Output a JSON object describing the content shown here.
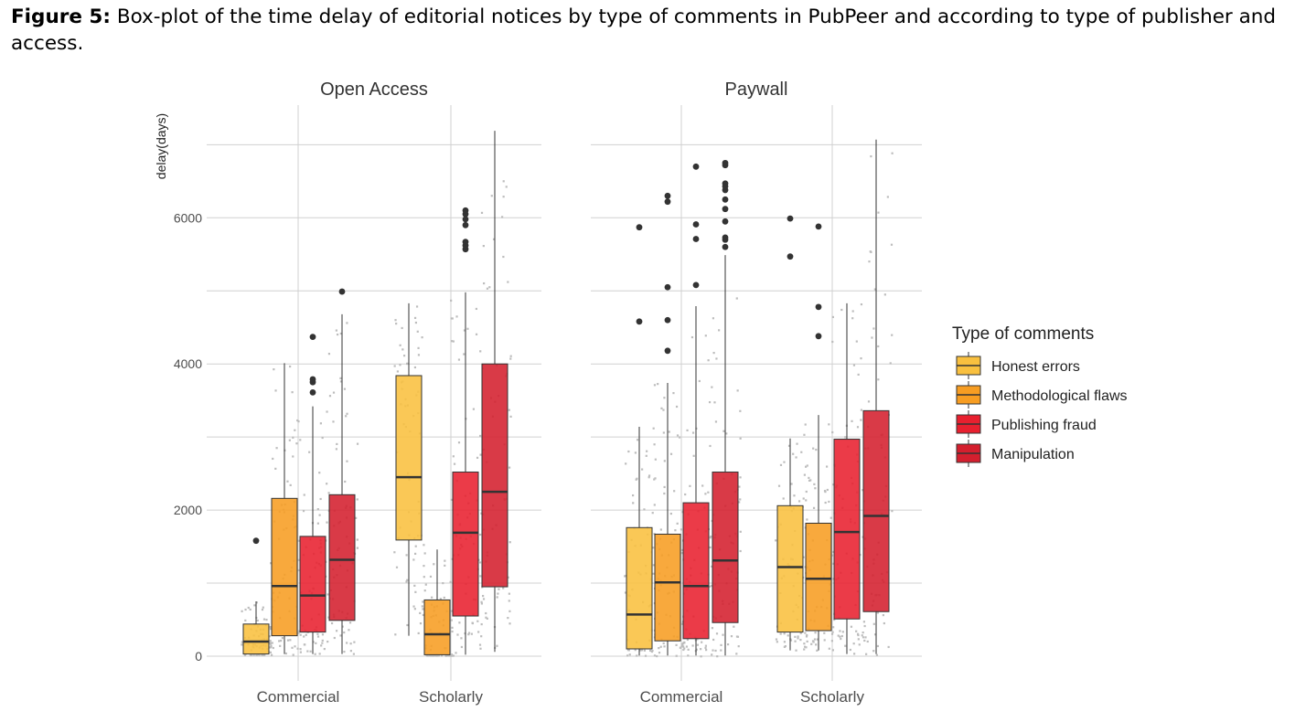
{
  "caption": {
    "label": "Figure 5:",
    "text": " Box-plot of the time delay of editorial notices by type of comments in PubPeer and according to type of publisher and access."
  },
  "chart_data": {
    "type": "boxplot",
    "ylabel": "delay(days)",
    "y_ticks": [
      0,
      2000,
      4000,
      6000
    ],
    "ylim": [
      -50,
      7250
    ],
    "grid": true,
    "legend_position": "right",
    "legend": {
      "title": "Type of comments",
      "entries": [
        {
          "name": "Honest errors",
          "color": "#f9c03f"
        },
        {
          "name": "Methodological flaws",
          "color": "#f79d22"
        },
        {
          "name": "Publishing fraud",
          "color": "#e8202f"
        },
        {
          "name": "Manipulation",
          "color": "#d41f2e"
        }
      ]
    },
    "panels": [
      {
        "title": "Open Access",
        "categories": [
          "Commercial",
          "Scholarly"
        ],
        "groups": [
          {
            "category": "Commercial",
            "boxes": [
              {
                "series": "Honest errors",
                "whisker_low": 30,
                "q1": 30,
                "median": 200,
                "q3": 440,
                "whisker_high": 750,
                "outliers": [
                  1580
                ]
              },
              {
                "series": "Methodological flaws",
                "whisker_low": 30,
                "q1": 280,
                "median": 960,
                "q3": 2160,
                "whisker_high": 4010,
                "outliers": []
              },
              {
                "series": "Publishing fraud",
                "whisker_low": 30,
                "q1": 330,
                "median": 830,
                "q3": 1640,
                "whisker_high": 3420,
                "outliers": [
                  3610,
                  3750,
                  3790,
                  4370
                ]
              },
              {
                "series": "Manipulation",
                "whisker_low": 30,
                "q1": 490,
                "median": 1320,
                "q3": 2210,
                "whisker_high": 4680,
                "outliers": [
                  4990
                ]
              }
            ]
          },
          {
            "category": "Scholarly",
            "boxes": [
              {
                "series": "Honest errors",
                "whisker_low": 280,
                "q1": 1590,
                "median": 2450,
                "q3": 3840,
                "whisker_high": 4830,
                "outliers": []
              },
              {
                "series": "Methodological flaws",
                "whisker_low": 20,
                "q1": 20,
                "median": 300,
                "q3": 770,
                "whisker_high": 1460,
                "outliers": []
              },
              {
                "series": "Publishing fraud",
                "whisker_low": 20,
                "q1": 550,
                "median": 1690,
                "q3": 2520,
                "whisker_high": 4980,
                "outliers": [
                  5570,
                  5620,
                  5670,
                  5900,
                  5980,
                  6050,
                  6100
                ]
              },
              {
                "series": "Manipulation",
                "whisker_low": 60,
                "q1": 950,
                "median": 2250,
                "q3": 4000,
                "whisker_high": 7190,
                "outliers": []
              }
            ]
          }
        ]
      },
      {
        "title": "Paywall",
        "categories": [
          "Commercial",
          "Scholarly"
        ],
        "groups": [
          {
            "category": "Commercial",
            "boxes": [
              {
                "series": "Honest errors",
                "whisker_low": 10,
                "q1": 100,
                "median": 570,
                "q3": 1760,
                "whisker_high": 3140,
                "outliers": [
                  4580,
                  5870
                ]
              },
              {
                "series": "Methodological flaws",
                "whisker_low": 10,
                "q1": 210,
                "median": 1010,
                "q3": 1670,
                "whisker_high": 3740,
                "outliers": [
                  4180,
                  4600,
                  5050,
                  6220,
                  6300
                ]
              },
              {
                "series": "Publishing fraud",
                "whisker_low": 10,
                "q1": 240,
                "median": 960,
                "q3": 2100,
                "whisker_high": 4790,
                "outliers": [
                  5080,
                  5710,
                  5910,
                  6700
                ]
              },
              {
                "series": "Manipulation",
                "whisker_low": 10,
                "q1": 460,
                "median": 1310,
                "q3": 2520,
                "whisker_high": 5490,
                "outliers": [
                  5600,
                  5700,
                  5730,
                  5950,
                  6120,
                  6250,
                  6380,
                  6430,
                  6470,
                  6720,
                  6750
                ]
              }
            ]
          },
          {
            "category": "Scholarly",
            "boxes": [
              {
                "series": "Honest errors",
                "whisker_low": 80,
                "q1": 330,
                "median": 1220,
                "q3": 2060,
                "whisker_high": 2980,
                "outliers": [
                  5470,
                  5990
                ]
              },
              {
                "series": "Methodological flaws",
                "whisker_low": 80,
                "q1": 350,
                "median": 1060,
                "q3": 1820,
                "whisker_high": 3300,
                "outliers": [
                  4380,
                  4780,
                  5880
                ]
              },
              {
                "series": "Publishing fraud",
                "whisker_low": 30,
                "q1": 510,
                "median": 1700,
                "q3": 2970,
                "whisker_high": 4830,
                "outliers": []
              },
              {
                "series": "Manipulation",
                "whisker_low": 30,
                "q1": 610,
                "median": 1920,
                "q3": 3360,
                "whisker_high": 7070,
                "outliers": []
              }
            ]
          }
        ]
      }
    ]
  }
}
